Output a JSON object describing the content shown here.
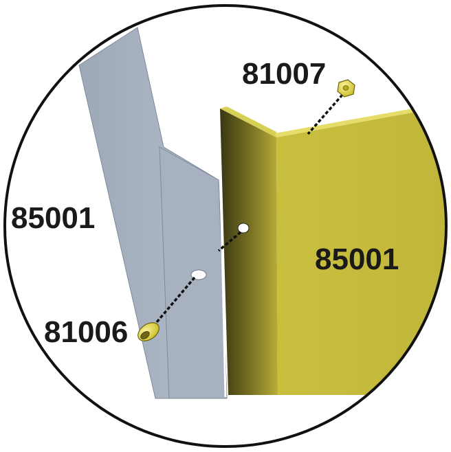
{
  "labels": {
    "nut_top": "81007",
    "panel_left": "85001",
    "panel_right": "85001",
    "bolt_bottom": "81006"
  },
  "colors": {
    "background": "#ffffff",
    "circle_outline": "#111111",
    "gray_panel": "#a9b3c1",
    "gray_panel_shade": "#8f9aab",
    "yellow_panel": "#c3b93c",
    "yellow_panel_dark": "#2f2d10",
    "hardware_yellow": "#e4d84a",
    "dashed_line": "#111111"
  }
}
